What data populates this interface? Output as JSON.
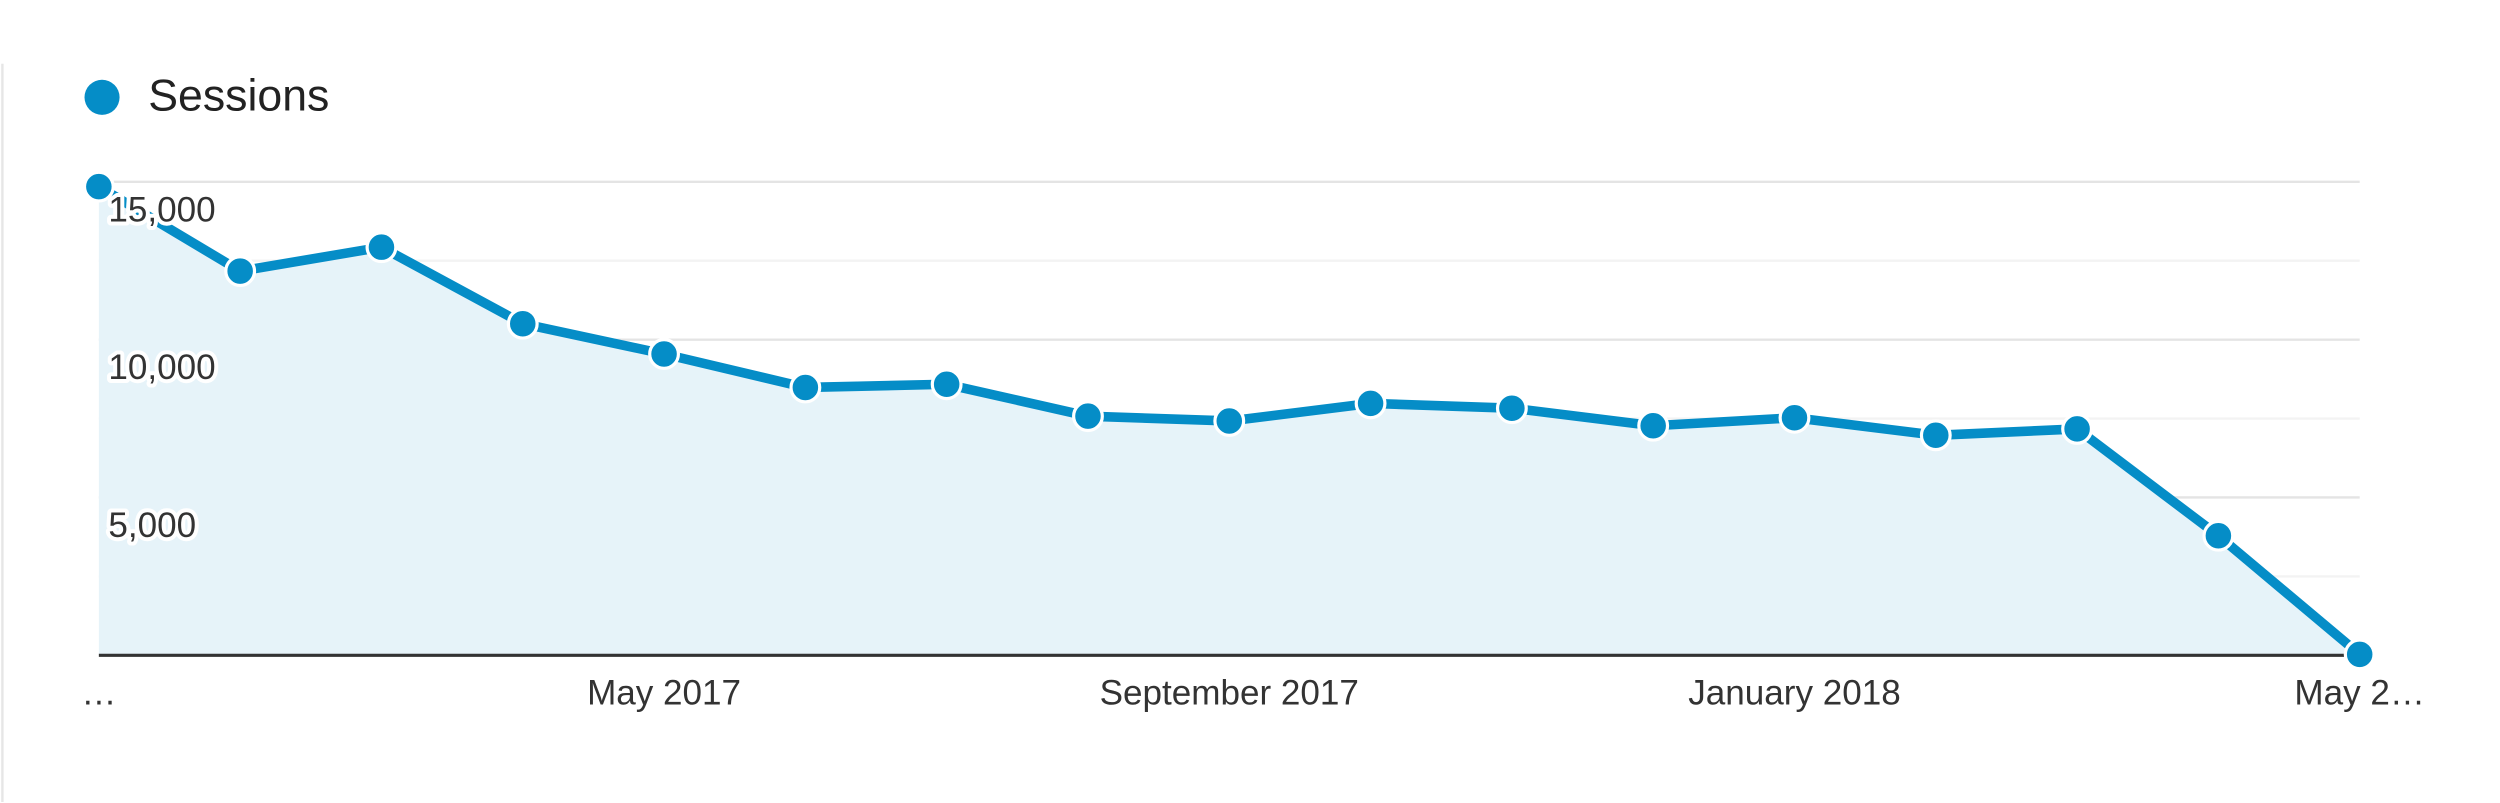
{
  "chart_data": {
    "type": "line",
    "legend": "Sessions",
    "color": "#058dc7",
    "area_color": "#e6f3f9",
    "categories": [
      "…",
      null,
      null,
      null,
      "May 2017",
      null,
      null,
      null,
      "September 2017",
      null,
      null,
      null,
      "January 2018",
      null,
      null,
      null,
      "May 2…"
    ],
    "values": [
      14848,
      12172,
      12929,
      10505,
      9545,
      8485,
      8586,
      7576,
      7424,
      7980,
      7828,
      7273,
      7525,
      6970,
      7172,
      3788,
      30
    ],
    "ylim": [
      0,
      15000
    ],
    "yticks": [
      {
        "value": 5000,
        "label": "5,000"
      },
      {
        "value": 10000,
        "label": "10,000"
      },
      {
        "value": 15000,
        "label": "15,000"
      }
    ],
    "grid": true
  }
}
